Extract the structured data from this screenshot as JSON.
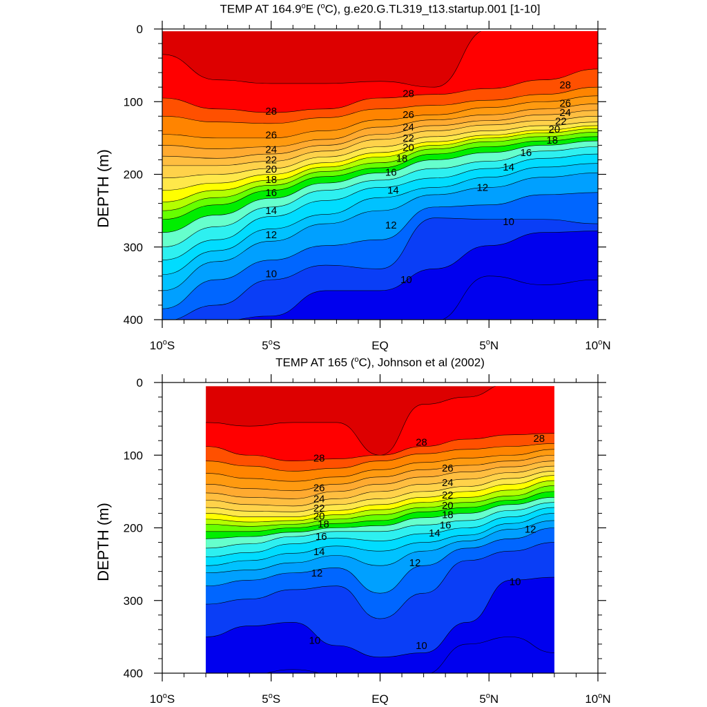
{
  "chart_data": [
    {
      "type": "heatmap",
      "subtype": "filled-contour",
      "title_prefix": "TEMP AT 164.9",
      "title_suffix": "E (",
      "title_unit": "C), g.e20.G.TL319_t13.startup.001 [1-10]",
      "ylabel": "DEPTH (m)",
      "ylim": [
        0,
        400
      ],
      "y_inverted": true,
      "xlim": [
        -10,
        10
      ],
      "x_ticks": [
        -10,
        -5,
        0,
        5,
        10
      ],
      "x_tick_labels": [
        {
          "num": "10",
          "deg": "o",
          "hemi": "S"
        },
        {
          "num": "5",
          "deg": "o",
          "hemi": "S"
        },
        {
          "num": "EQ",
          "deg": "",
          "hemi": ""
        },
        {
          "num": "5",
          "deg": "o",
          "hemi": "N"
        },
        {
          "num": "10",
          "deg": "o",
          "hemi": "N"
        }
      ],
      "y_ticks": [
        0,
        100,
        200,
        300,
        400
      ],
      "y_tick_labels": [
        "0",
        "100",
        "200",
        "300",
        "400"
      ],
      "data_xrange": [
        -10,
        10
      ],
      "data_yrange": [
        3,
        400
      ],
      "x": [
        -10,
        -7.5,
        -5,
        -2.5,
        0,
        2.5,
        5,
        7.5,
        10
      ],
      "isotherms": [
        {
          "level": 29,
          "depth": [
            35,
            70,
            75,
            75,
            72,
            80,
            0,
            0,
            0
          ]
        },
        {
          "level": 28,
          "depth": [
            95,
            110,
            115,
            110,
            95,
            90,
            82,
            70,
            55
          ]
        },
        {
          "level": 27,
          "depth": [
            120,
            128,
            130,
            122,
            110,
            105,
            98,
            90,
            80
          ]
        },
        {
          "level": 26,
          "depth": [
            145,
            150,
            150,
            140,
            125,
            118,
            108,
            100,
            92
          ]
        },
        {
          "level": 25,
          "depth": [
            160,
            165,
            162,
            152,
            135,
            125,
            118,
            110,
            103
          ]
        },
        {
          "level": 24,
          "depth": [
            175,
            178,
            172,
            160,
            145,
            133,
            126,
            118,
            112
          ]
        },
        {
          "level": 23,
          "depth": [
            188,
            188,
            182,
            168,
            152,
            140,
            132,
            126,
            120
          ]
        },
        {
          "level": 22,
          "depth": [
            205,
            200,
            192,
            176,
            162,
            148,
            140,
            133,
            128
          ]
        },
        {
          "level": 21,
          "depth": [
            222,
            212,
            200,
            184,
            170,
            155,
            146,
            139,
            133
          ]
        },
        {
          "level": 20,
          "depth": [
            238,
            222,
            208,
            190,
            176,
            160,
            150,
            143,
            137
          ]
        },
        {
          "level": 19,
          "depth": [
            250,
            232,
            215,
            196,
            184,
            165,
            155,
            148,
            142
          ]
        },
        {
          "level": 18,
          "depth": [
            262,
            242,
            222,
            203,
            191,
            172,
            162,
            154,
            148
          ]
        },
        {
          "level": 17,
          "depth": [
            280,
            256,
            233,
            212,
            198,
            180,
            170,
            160,
            154
          ]
        },
        {
          "level": 16,
          "depth": [
            300,
            272,
            245,
            222,
            208,
            192,
            182,
            168,
            162
          ]
        },
        {
          "level": 15,
          "depth": [
            318,
            290,
            258,
            236,
            218,
            205,
            192,
            178,
            172
          ]
        },
        {
          "level": 14,
          "depth": [
            338,
            305,
            275,
            255,
            232,
            218,
            204,
            190,
            185
          ]
        },
        {
          "level": 13,
          "depth": [
            360,
            320,
            292,
            268,
            250,
            228,
            218,
            204,
            198
          ]
        },
        {
          "level": 12,
          "depth": [
            385,
            345,
            318,
            298,
            290,
            245,
            242,
            228,
            225
          ]
        },
        {
          "level": 11,
          "depth": [
            402,
            380,
            345,
            325,
            330,
            260,
            262,
            262,
            268
          ]
        },
        {
          "level": 10,
          "depth": [
            402,
            402,
            395,
            360,
            360,
            330,
            298,
            280,
            278
          ]
        },
        {
          "level": 9,
          "depth": [
            402,
            402,
            402,
            402,
            402,
            402,
            340,
            352,
            345
          ]
        }
      ],
      "contour_labels": [
        {
          "text": "28",
          "x": -5.0,
          "depth": 113
        },
        {
          "text": "26",
          "x": -5.0,
          "depth": 146
        },
        {
          "text": "24",
          "x": -5.0,
          "depth": 166
        },
        {
          "text": "22",
          "x": -5.0,
          "depth": 180
        },
        {
          "text": "20",
          "x": -5.0,
          "depth": 193
        },
        {
          "text": "18",
          "x": -5.0,
          "depth": 207
        },
        {
          "text": "16",
          "x": -5.0,
          "depth": 225
        },
        {
          "text": "14",
          "x": -5.0,
          "depth": 250
        },
        {
          "text": "12",
          "x": -5.0,
          "depth": 283
        },
        {
          "text": "10",
          "x": -5.0,
          "depth": 337
        },
        {
          "text": "28",
          "x": 1.3,
          "depth": 89
        },
        {
          "text": "26",
          "x": 1.3,
          "depth": 118
        },
        {
          "text": "24",
          "x": 1.3,
          "depth": 135
        },
        {
          "text": "22",
          "x": 1.3,
          "depth": 150
        },
        {
          "text": "20",
          "x": 1.3,
          "depth": 163
        },
        {
          "text": "18",
          "x": 1.0,
          "depth": 178
        },
        {
          "text": "16",
          "x": 0.5,
          "depth": 197
        },
        {
          "text": "14",
          "x": 0.6,
          "depth": 222
        },
        {
          "text": "12",
          "x": 0.5,
          "depth": 270
        },
        {
          "text": "10",
          "x": 1.2,
          "depth": 345
        },
        {
          "text": "28",
          "x": 8.5,
          "depth": 77
        },
        {
          "text": "26",
          "x": 8.5,
          "depth": 102
        },
        {
          "text": "24",
          "x": 8.5,
          "depth": 115
        },
        {
          "text": "22",
          "x": 8.3,
          "depth": 127
        },
        {
          "text": "20",
          "x": 8.0,
          "depth": 138
        },
        {
          "text": "18",
          "x": 7.9,
          "depth": 153
        },
        {
          "text": "16",
          "x": 6.7,
          "depth": 170
        },
        {
          "text": "14",
          "x": 5.9,
          "depth": 190
        },
        {
          "text": "12",
          "x": 4.7,
          "depth": 218
        },
        {
          "text": "10",
          "x": 5.9,
          "depth": 265
        }
      ]
    },
    {
      "type": "heatmap",
      "subtype": "filled-contour",
      "title_prefix": "TEMP AT 165 (",
      "title_suffix": "",
      "title_unit": "C), Johnson et al (2002)",
      "ylabel": "DEPTH (m)",
      "ylim": [
        0,
        400
      ],
      "y_inverted": true,
      "xlim": [
        -10,
        10
      ],
      "x_ticks": [
        -10,
        -5,
        0,
        5,
        10
      ],
      "x_tick_labels": [
        {
          "num": "10",
          "deg": "o",
          "hemi": "S"
        },
        {
          "num": "5",
          "deg": "o",
          "hemi": "S"
        },
        {
          "num": "EQ",
          "deg": "",
          "hemi": ""
        },
        {
          "num": "5",
          "deg": "o",
          "hemi": "N"
        },
        {
          "num": "10",
          "deg": "o",
          "hemi": "N"
        }
      ],
      "y_ticks": [
        0,
        100,
        200,
        300,
        400
      ],
      "y_tick_labels": [
        "0",
        "100",
        "200",
        "300",
        "400"
      ],
      "data_xrange": [
        -8,
        8
      ],
      "data_yrange": [
        5,
        400
      ],
      "x": [
        -8,
        -6,
        -4,
        -2,
        0,
        2,
        4,
        6,
        8
      ],
      "isotherms": [
        {
          "level": 29,
          "depth": [
            55,
            60,
            55,
            55,
            100,
            30,
            20,
            0,
            0
          ]
        },
        {
          "level": 28,
          "depth": [
            88,
            100,
            108,
            105,
            100,
            88,
            78,
            72,
            70
          ]
        },
        {
          "level": 27,
          "depth": [
            108,
            115,
            122,
            118,
            108,
            98,
            92,
            88,
            84
          ]
        },
        {
          "level": 26,
          "depth": [
            125,
            132,
            136,
            130,
            120,
            110,
            104,
            100,
            92
          ]
        },
        {
          "level": 25,
          "depth": [
            140,
            146,
            149,
            140,
            130,
            120,
            114,
            108,
            100
          ]
        },
        {
          "level": 24,
          "depth": [
            152,
            158,
            160,
            150,
            140,
            130,
            123,
            116,
            108
          ]
        },
        {
          "level": 23,
          "depth": [
            162,
            168,
            170,
            160,
            150,
            140,
            133,
            124,
            115
          ]
        },
        {
          "level": 22,
          "depth": [
            172,
            177,
            178,
            168,
            160,
            150,
            143,
            132,
            122
          ]
        },
        {
          "level": 21,
          "depth": [
            180,
            185,
            185,
            176,
            168,
            158,
            150,
            140,
            128
          ]
        },
        {
          "level": 20,
          "depth": [
            188,
            192,
            190,
            182,
            175,
            165,
            158,
            148,
            135
          ]
        },
        {
          "level": 19,
          "depth": [
            195,
            198,
            195,
            188,
            182,
            172,
            165,
            156,
            142
          ]
        },
        {
          "level": 18,
          "depth": [
            205,
            205,
            200,
            194,
            190,
            178,
            172,
            162,
            150
          ]
        },
        {
          "level": 17,
          "depth": [
            215,
            212,
            206,
            200,
            197,
            186,
            180,
            168,
            158
          ]
        },
        {
          "level": 16,
          "depth": [
            228,
            222,
            212,
            205,
            205,
            196,
            190,
            176,
            165
          ]
        },
        {
          "level": 15,
          "depth": [
            240,
            234,
            222,
            214,
            218,
            208,
            200,
            185,
            172
          ]
        },
        {
          "level": 14,
          "depth": [
            252,
            245,
            235,
            225,
            232,
            220,
            210,
            194,
            180
          ]
        },
        {
          "level": 13,
          "depth": [
            262,
            258,
            248,
            238,
            252,
            232,
            218,
            202,
            190
          ]
        },
        {
          "level": 12,
          "depth": [
            280,
            272,
            262,
            255,
            290,
            252,
            228,
            215,
            200
          ]
        },
        {
          "level": 11,
          "depth": [
            305,
            298,
            285,
            280,
            325,
            290,
            245,
            232,
            220
          ]
        },
        {
          "level": 10,
          "depth": [
            350,
            335,
            330,
            362,
            378,
            372,
            330,
            272,
            268
          ]
        },
        {
          "level": 9,
          "depth": [
            402,
            402,
            395,
            402,
            402,
            402,
            360,
            350,
            372
          ]
        }
      ],
      "contour_labels": [
        {
          "text": "28",
          "x": -2.8,
          "depth": 104
        },
        {
          "text": "26",
          "x": -2.8,
          "depth": 145
        },
        {
          "text": "24",
          "x": -2.8,
          "depth": 160
        },
        {
          "text": "22",
          "x": -2.8,
          "depth": 173
        },
        {
          "text": "20",
          "x": -2.8,
          "depth": 184
        },
        {
          "text": "18",
          "x": -2.6,
          "depth": 195
        },
        {
          "text": "16",
          "x": -2.7,
          "depth": 212
        },
        {
          "text": "14",
          "x": -2.8,
          "depth": 233
        },
        {
          "text": "12",
          "x": -2.9,
          "depth": 262
        },
        {
          "text": "10",
          "x": -3.0,
          "depth": 355
        },
        {
          "text": "28",
          "x": 1.9,
          "depth": 82
        },
        {
          "text": "26",
          "x": 3.1,
          "depth": 118
        },
        {
          "text": "24",
          "x": 3.1,
          "depth": 138
        },
        {
          "text": "22",
          "x": 3.1,
          "depth": 155
        },
        {
          "text": "20",
          "x": 3.1,
          "depth": 169
        },
        {
          "text": "18",
          "x": 3.1,
          "depth": 182
        },
        {
          "text": "16",
          "x": 3.0,
          "depth": 196
        },
        {
          "text": "14",
          "x": 2.5,
          "depth": 207
        },
        {
          "text": "12",
          "x": 1.6,
          "depth": 248
        },
        {
          "text": "10",
          "x": 1.9,
          "depth": 362
        },
        {
          "text": "28",
          "x": 7.3,
          "depth": 77
        },
        {
          "text": "12",
          "x": 6.9,
          "depth": 202
        },
        {
          "text": "10",
          "x": 6.2,
          "depth": 274
        }
      ]
    }
  ],
  "colormap": {
    "9": "#0000ee",
    "10": "#0a3ef6",
    "11": "#0066ff",
    "12": "#00a0ff",
    "13": "#00c2ff",
    "14": "#00dcff",
    "15": "#2ef0f0",
    "16": "#66ffcc",
    "17": "#00ee00",
    "18": "#66ff00",
    "19": "#b4ff00",
    "20": "#ffff00",
    "21": "#ffe84a",
    "22": "#ffd24a",
    "23": "#ffbe40",
    "24": "#ffaa30",
    "25": "#ff9a10",
    "26": "#ff8400",
    "27": "#ff5000",
    "28": "#ff0000",
    "29": "#dd0000"
  }
}
